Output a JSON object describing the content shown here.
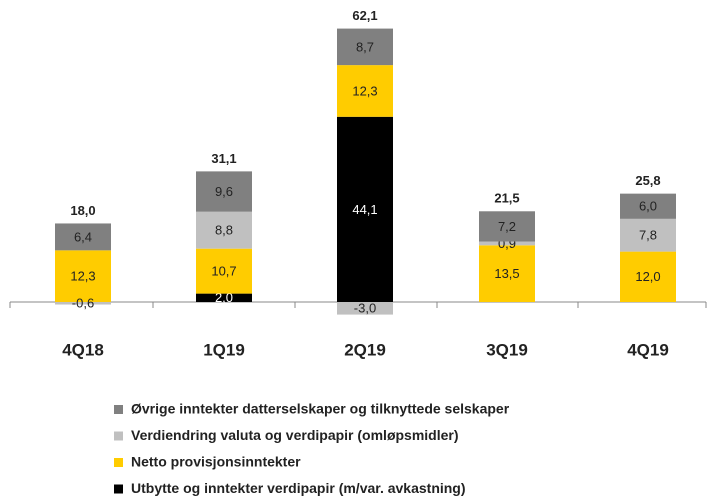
{
  "chart_data": {
    "type": "stacked_bar",
    "categories": [
      "4Q18",
      "1Q19",
      "2Q19",
      "3Q19",
      "4Q19"
    ],
    "series": [
      {
        "name": "Utbytte og inntekter verdipapir (m/var. avkastning)",
        "color": "#000000",
        "values": [
          null,
          2.0,
          44.1,
          null,
          null
        ],
        "value_labels": [
          null,
          "2,0",
          "44,1",
          null,
          null
        ]
      },
      {
        "name": "Netto provisjonsinntekter",
        "color": "#ffcc00",
        "values": [
          12.3,
          10.7,
          12.3,
          13.5,
          12.0
        ],
        "value_labels": [
          "12,3",
          "10,7",
          "12,3",
          "13,5",
          "12,0"
        ]
      },
      {
        "name": "Verdiendring valuta og verdipapir (omløpsmidler)",
        "color": "#c0c0c0",
        "values": [
          -0.6,
          8.8,
          -3.0,
          0.9,
          7.8
        ],
        "value_labels": [
          "-0,6",
          "8,8",
          "-3,0",
          "0,9",
          "7,8"
        ]
      },
      {
        "name": "Øvrige inntekter datterselskaper og tilknyttede selskaper",
        "color": "#808080",
        "values": [
          6.4,
          9.6,
          8.7,
          7.2,
          6.0
        ],
        "value_labels": [
          "6,4",
          "9,6",
          "8,7",
          "7,2",
          "6,0"
        ]
      }
    ],
    "totals": [
      18.0,
      31.1,
      62.1,
      21.5,
      25.8
    ],
    "total_labels": [
      "18,0",
      "31,1",
      "62,1",
      "21,5",
      "25,8"
    ]
  }
}
